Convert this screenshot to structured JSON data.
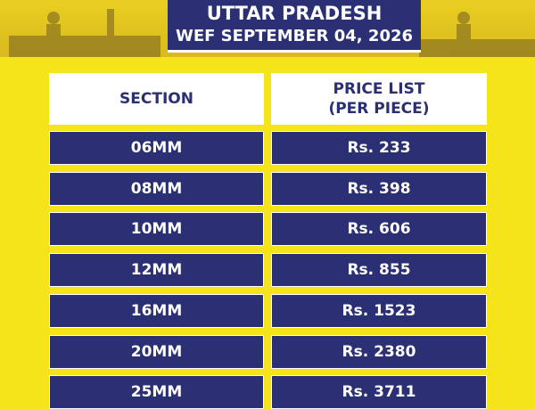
{
  "header": {
    "title": "UTTAR PRADESH",
    "subtitle": "WEF SEPTEMBER 04, 2026"
  },
  "table": {
    "columns": [
      "SECTION",
      "PRICE LIST\n(PER PIECE)"
    ],
    "rows": [
      [
        "06MM",
        "Rs. 233"
      ],
      [
        "08MM",
        "Rs. 398"
      ],
      [
        "10MM",
        "Rs. 606"
      ],
      [
        "12MM",
        "Rs. 855"
      ],
      [
        "16MM",
        "Rs. 1523"
      ],
      [
        "20MM",
        "Rs. 2380"
      ],
      [
        "25MM",
        "Rs. 3711"
      ]
    ]
  }
}
